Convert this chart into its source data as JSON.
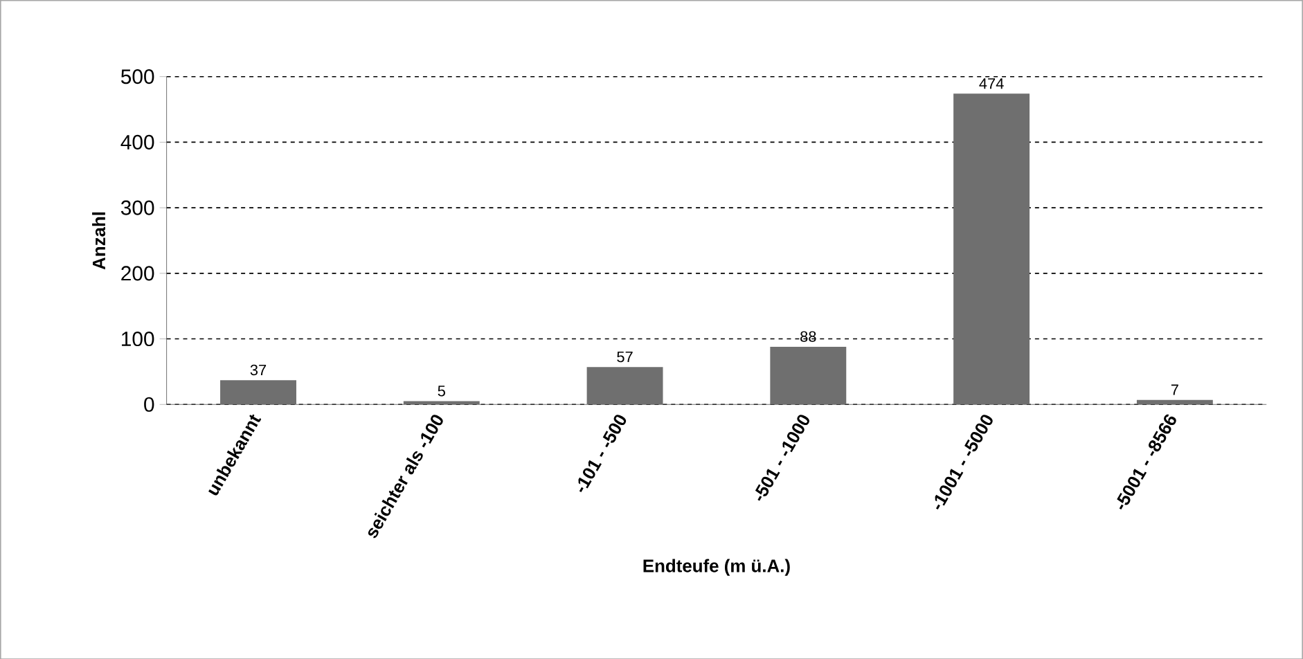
{
  "chart_data": {
    "type": "bar",
    "xlabel": "Endteufe (m ü.A.)",
    "ylabel": "Anzahl",
    "categories": [
      "unbekannt",
      "seichter als -100",
      "-101 - -500",
      "-501 - -1000",
      "-1001 - -5000",
      "-5001 - -8566"
    ],
    "values": [
      37,
      5,
      57,
      88,
      474,
      7
    ],
    "color": "#6f6f6f",
    "ylim": [
      0,
      500
    ],
    "yticks": [
      0,
      100,
      200,
      300,
      400,
      500
    ],
    "grid": "y",
    "data_labels": true
  }
}
